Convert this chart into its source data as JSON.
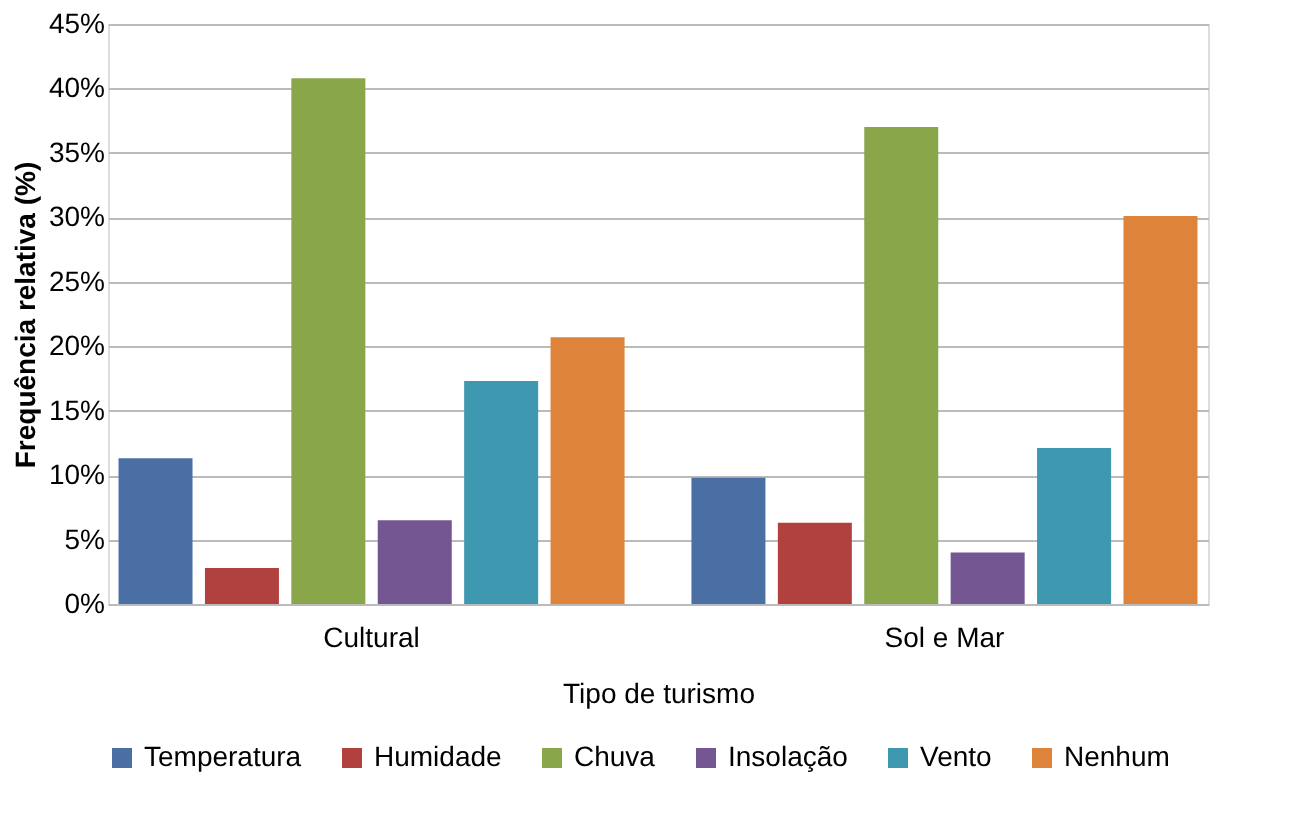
{
  "chart_data": {
    "type": "bar",
    "xlabel": "Tipo de turismo",
    "ylabel": "Frequência relativa (%)",
    "categories": [
      "Cultural",
      "Sol e Mar"
    ],
    "series": [
      {
        "name": "Temperatura",
        "color": "#4a6fa5",
        "values": [
          11.3,
          9.8
        ]
      },
      {
        "name": "Humidade",
        "color": "#b0413e",
        "values": [
          2.8,
          6.3
        ]
      },
      {
        "name": "Chuva",
        "color": "#8aa64a",
        "values": [
          40.8,
          37.0
        ]
      },
      {
        "name": "Insolação",
        "color": "#735692",
        "values": [
          6.5,
          4.0
        ]
      },
      {
        "name": "Vento",
        "color": "#3e98b0",
        "values": [
          17.3,
          12.1
        ]
      },
      {
        "name": "Nenhum",
        "color": "#dd843a",
        "values": [
          20.7,
          30.1
        ]
      }
    ],
    "ylim": [
      0,
      45
    ],
    "yticks": [
      {
        "value": 0,
        "label": "0%"
      },
      {
        "value": 5,
        "label": "5%"
      },
      {
        "value": 10,
        "label": "10%"
      },
      {
        "value": 15,
        "label": "15%"
      },
      {
        "value": 20,
        "label": "20%"
      },
      {
        "value": 25,
        "label": "25%"
      },
      {
        "value": 30,
        "label": "30%"
      },
      {
        "value": 35,
        "label": "35%"
      },
      {
        "value": 40,
        "label": "40%"
      },
      {
        "value": 45,
        "label": "45%"
      }
    ],
    "grid": "y",
    "legend": "bottom"
  }
}
